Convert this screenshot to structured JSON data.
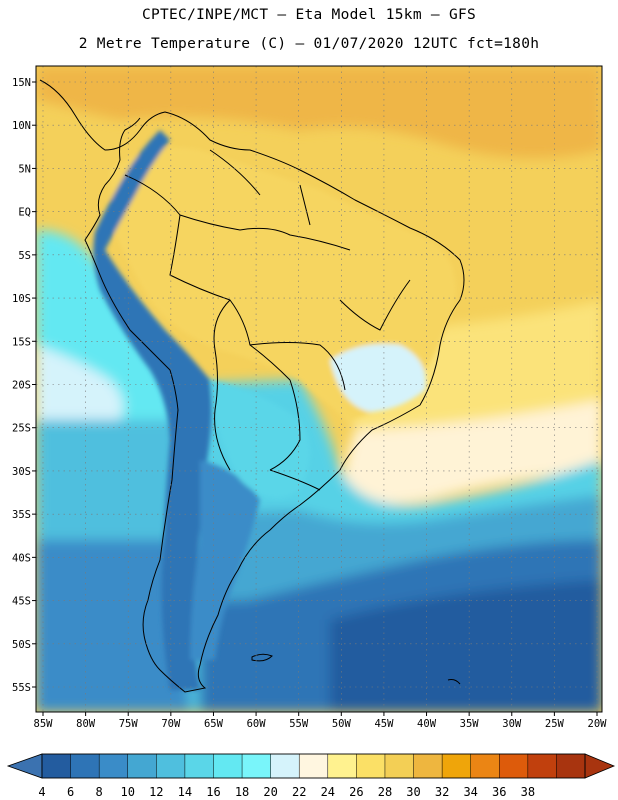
{
  "header": {
    "line1": "CPTEC/INPE/MCT –  Eta Model 15km – GFS",
    "line2": "2 Metre Temperature (C) – 01/07/2020 12UTC fct=180h"
  },
  "map": {
    "region": "South America",
    "latitudes": [
      {
        "label": "15N",
        "lat": 15
      },
      {
        "label": "10N",
        "lat": 10
      },
      {
        "label": "5N",
        "lat": 5
      },
      {
        "label": "EQ",
        "lat": 0
      },
      {
        "label": "5S",
        "lat": -5
      },
      {
        "label": "10S",
        "lat": -10
      },
      {
        "label": "15S",
        "lat": -15
      },
      {
        "label": "20S",
        "lat": -20
      },
      {
        "label": "25S",
        "lat": -25
      },
      {
        "label": "30S",
        "lat": -30
      },
      {
        "label": "35S",
        "lat": -35
      },
      {
        "label": "40S",
        "lat": -40
      },
      {
        "label": "45S",
        "lat": -45
      },
      {
        "label": "50S",
        "lat": -50
      },
      {
        "label": "55S",
        "lat": -55
      }
    ],
    "longitudes": [
      {
        "label": "85W",
        "lon": -85
      },
      {
        "label": "80W",
        "lon": -80
      },
      {
        "label": "75W",
        "lon": -75
      },
      {
        "label": "70W",
        "lon": -70
      },
      {
        "label": "65W",
        "lon": -65
      },
      {
        "label": "60W",
        "lon": -60
      },
      {
        "label": "55W",
        "lon": -55
      },
      {
        "label": "50W",
        "lon": -50
      },
      {
        "label": "45W",
        "lon": -45
      },
      {
        "label": "40W",
        "lon": -40
      },
      {
        "label": "35W",
        "lon": -35
      },
      {
        "label": "30W",
        "lon": -30
      },
      {
        "label": "25W",
        "lon": -25
      },
      {
        "label": "20W",
        "lon": -20
      }
    ]
  },
  "colorbar": {
    "unit": "C",
    "labels": [
      "4",
      "6",
      "8",
      "10",
      "12",
      "14",
      "16",
      "18",
      "20",
      "22",
      "24",
      "26",
      "28",
      "30",
      "32",
      "34",
      "36",
      "38"
    ],
    "colors": [
      "#235c9f",
      "#2e74b6",
      "#3a8cc8",
      "#44a7d2",
      "#4fbfde",
      "#5ad6e8",
      "#63e8f2",
      "#79f5fa",
      "#d5f3fb",
      "#fff6e0",
      "#fff28f",
      "#fbe066",
      "#f3cf55",
      "#eeb63f",
      "#efa50a",
      "#eb8514",
      "#dd5b0b",
      "#c1400d",
      "#a8340f"
    ],
    "low_color": "#3b72b0",
    "high_color": "#a8340f"
  }
}
